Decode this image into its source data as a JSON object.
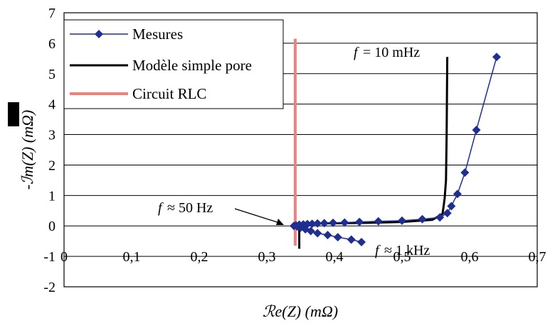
{
  "chart_data": {
    "type": "line",
    "xlabel": "ℛe(Z) (mΩ)",
    "ylabel": "-ℐm(Z) (mΩ)",
    "xlim": [
      0,
      0.7
    ],
    "ylim": [
      -2,
      7
    ],
    "x_ticks": [
      "0",
      "0,1",
      "0,2",
      "0,3",
      "0,4",
      "0,5",
      "0,6",
      "0,7"
    ],
    "y_ticks": [
      "-2",
      "-1",
      "0",
      "1",
      "2",
      "3",
      "4",
      "5",
      "6",
      "7"
    ],
    "grid": "horizontal",
    "legend_position": "top-left",
    "series": [
      {
        "name": "Mesures",
        "color": "#1f2f8f",
        "marker": "diamond",
        "points": [
          [
            0.44,
            -0.53
          ],
          [
            0.425,
            -0.45
          ],
          [
            0.405,
            -0.37
          ],
          [
            0.39,
            -0.3
          ],
          [
            0.375,
            -0.24
          ],
          [
            0.365,
            -0.17
          ],
          [
            0.357,
            -0.11
          ],
          [
            0.35,
            -0.06
          ],
          [
            0.345,
            -0.02
          ],
          [
            0.34,
            0.0
          ],
          [
            0.343,
            0.02
          ],
          [
            0.348,
            0.04
          ],
          [
            0.354,
            0.05
          ],
          [
            0.36,
            0.06
          ],
          [
            0.367,
            0.07
          ],
          [
            0.375,
            0.08
          ],
          [
            0.385,
            0.09
          ],
          [
            0.398,
            0.1
          ],
          [
            0.415,
            0.11
          ],
          [
            0.437,
            0.13
          ],
          [
            0.465,
            0.15
          ],
          [
            0.5,
            0.17
          ],
          [
            0.53,
            0.22
          ],
          [
            0.556,
            0.28
          ],
          [
            0.567,
            0.42
          ],
          [
            0.573,
            0.65
          ],
          [
            0.582,
            1.05
          ],
          [
            0.593,
            1.75
          ],
          [
            0.61,
            3.15
          ],
          [
            0.64,
            5.55
          ]
        ]
      },
      {
        "name": "Modèle simple pore",
        "color": "#000000",
        "points": [
          [
            0.348,
            -0.75
          ],
          [
            0.348,
            0.05
          ],
          [
            0.37,
            0.08
          ],
          [
            0.45,
            0.1
          ],
          [
            0.5,
            0.13
          ],
          [
            0.545,
            0.2
          ],
          [
            0.56,
            0.4
          ],
          [
            0.563,
            0.9
          ],
          [
            0.565,
            1.5
          ],
          [
            0.566,
            3.0
          ],
          [
            0.567,
            5.55
          ]
        ]
      },
      {
        "name": "Circuit RLC",
        "color": "#f08080",
        "points": [
          [
            0.342,
            -0.65
          ],
          [
            0.342,
            6.15
          ]
        ]
      }
    ]
  },
  "annotations": {
    "f_symbol": "f",
    "low_freq": "= 10 mHz",
    "mid_freq": "≈ 50 Hz",
    "high_freq": "≈ 1 kHz"
  }
}
